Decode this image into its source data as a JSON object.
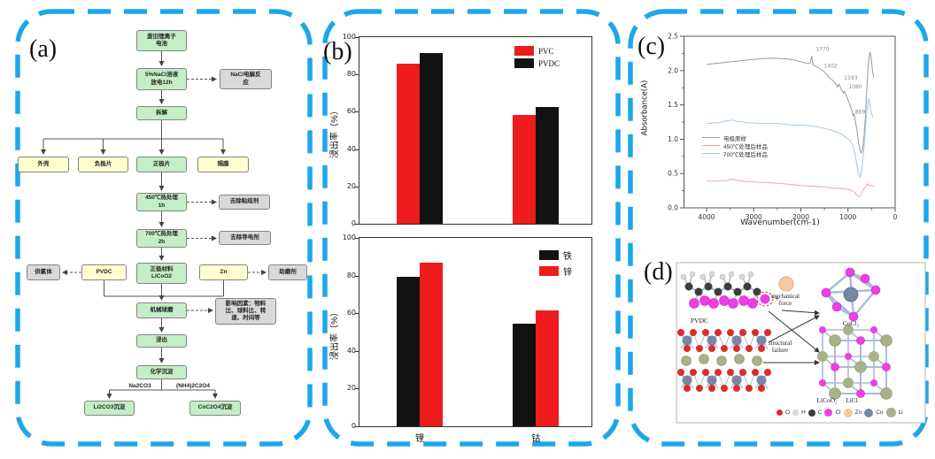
{
  "panels": {
    "a": {
      "label": "(a)",
      "flow": {
        "n1": "废旧锂离子\n电池",
        "n2": "5%NaCl溶液\n放电12h",
        "s1": "NaCl电解反\n应",
        "n3": "拆解",
        "b1": "外壳",
        "b2": "负极片",
        "b3": "正极片",
        "b4": "隔膜",
        "n4": "450℃热处理\n1h",
        "s2": "去除粘结剂",
        "n5": "700℃热处理\n2h",
        "s3": "去除导电剂",
        "s4": "供氯体",
        "p1": "PVDC",
        "n6": "正极材料\nLiCoO2",
        "p2": "Zn",
        "s5": "助磨剂",
        "n7": "机械球磨",
        "s6": "影响因素：物料\n比、球料比、转\n速、时间等",
        "n8": "浸出",
        "n9": "化学沉淀",
        "lbl1": "Na2CO3",
        "lbl2": "(NH4)2C2O4",
        "e1": "Li2CO3沉淀",
        "e2": "CoC2O4沉淀"
      }
    },
    "b": {
      "label": "(b)"
    },
    "c": {
      "label": "(c)"
    },
    "d": {
      "label": "(d)",
      "molecules": {
        "pvdc": "PVDC",
        "licoo2": "LiCoO₂",
        "cocl2": "CoCl₂",
        "licl": "LiCl"
      },
      "annotations": {
        "mechanical": "mechanical\nforce",
        "structural": "structural\nfailure"
      },
      "legend": [
        {
          "label": "O",
          "color": "#dd2b2b"
        },
        {
          "label": "H",
          "color": "#d9d9d9"
        },
        {
          "label": "C",
          "color": "#3d3d3d"
        },
        {
          "label": "Cl",
          "color": "#ee3fe4"
        },
        {
          "label": "Zn",
          "color": "#f6c9a0"
        },
        {
          "label": "Co",
          "color": "#7687a3"
        },
        {
          "label": "Li",
          "color": "#a8b188"
        }
      ]
    },
    "border_color": "#1ba7ec"
  },
  "chart_data": [
    {
      "type": "bar",
      "title": "",
      "ylabel": "浸出率（%）",
      "categories": [
        "",
        ""
      ],
      "series": [
        {
          "name": "PVC",
          "color": "#ee1c1c",
          "values": [
            86,
            58.5
          ]
        },
        {
          "name": "PVDC",
          "color": "#121212",
          "values": [
            91.5,
            62.5
          ]
        }
      ],
      "ylim": [
        0,
        100
      ],
      "yticks": [
        0,
        20,
        40,
        60,
        80,
        100
      ],
      "legend_position": "top-right",
      "grid": false
    },
    {
      "type": "bar",
      "title": "",
      "ylabel": "浸出率（%）",
      "categories": [
        "锂",
        "钴"
      ],
      "series": [
        {
          "name": "铁",
          "color": "#121212",
          "values": [
            79.5,
            54.5
          ]
        },
        {
          "name": "锌",
          "color": "#ee1c1c",
          "values": [
            87,
            61.5
          ]
        }
      ],
      "ylim": [
        0,
        100
      ],
      "yticks": [
        0,
        20,
        40,
        60,
        80,
        100
      ],
      "legend_position": "top-right",
      "grid": false
    },
    {
      "type": "line",
      "title": "",
      "xlabel": "Wavenumber(cm-1)",
      "ylabel": "Absorbance(A)",
      "xlim": [
        4480,
        0
      ],
      "x_reversed": true,
      "ylim": [
        0,
        2.5
      ],
      "xticks": [
        4000,
        3000,
        2000,
        1000,
        0
      ],
      "yticks": [
        0,
        0.5,
        1,
        1.5,
        2,
        2.5
      ],
      "legend_position": "center-left",
      "annotations": [
        {
          "text": "1770",
          "x": 1540,
          "y": 2.29
        },
        {
          "text": "1402",
          "x": 1371,
          "y": 2.04
        },
        {
          "text": "1193",
          "x": 939,
          "y": 1.87
        },
        {
          "text": "1080",
          "x": 845,
          "y": 1.74
        },
        {
          "text": "869",
          "x": 742,
          "y": 1.37
        }
      ],
      "series": [
        {
          "name": "电极原样",
          "color": "#999999",
          "points": [
            [
              4000,
              2.09
            ],
            [
              3600,
              2.12
            ],
            [
              3200,
              2.15
            ],
            [
              2900,
              2.17
            ],
            [
              2600,
              2.18
            ],
            [
              2300,
              2.17
            ],
            [
              2100,
              2.15
            ],
            [
              1950,
              2.12
            ],
            [
              1850,
              2.1
            ],
            [
              1800,
              2.11
            ],
            [
              1770,
              2.21
            ],
            [
              1745,
              2.09
            ],
            [
              1700,
              2.07
            ],
            [
              1600,
              2.03
            ],
            [
              1500,
              1.98
            ],
            [
              1440,
              1.94
            ],
            [
              1402,
              1.9
            ],
            [
              1350,
              1.87
            ],
            [
              1300,
              1.84
            ],
            [
              1255,
              1.8
            ],
            [
              1225,
              1.76
            ],
            [
              1193,
              1.8
            ],
            [
              1160,
              1.75
            ],
            [
              1120,
              1.7
            ],
            [
              1095,
              1.67
            ],
            [
              1080,
              1.7
            ],
            [
              1040,
              1.64
            ],
            [
              1000,
              1.57
            ],
            [
              960,
              1.5
            ],
            [
              920,
              1.42
            ],
            [
              890,
              1.34
            ],
            [
              869,
              1.37
            ],
            [
              845,
              1.27
            ],
            [
              810,
              1.13
            ],
            [
              775,
              0.95
            ],
            [
              745,
              0.84
            ],
            [
              720,
              0.8
            ],
            [
              700,
              0.82
            ],
            [
              680,
              0.9
            ],
            [
              655,
              1.08
            ],
            [
              630,
              1.35
            ],
            [
              605,
              1.68
            ],
            [
              580,
              1.98
            ],
            [
              560,
              2.15
            ],
            [
              545,
              2.24
            ],
            [
              530,
              2.26
            ],
            [
              515,
              2.22
            ],
            [
              500,
              2.12
            ],
            [
              485,
              2.02
            ],
            [
              470,
              1.95
            ],
            [
              455,
              1.9
            ]
          ]
        },
        {
          "name": "450℃处理后样品",
          "color": "#f4a49e",
          "points": [
            [
              4000,
              0.39
            ],
            [
              3750,
              0.39
            ],
            [
              3550,
              0.4
            ],
            [
              3460,
              0.42
            ],
            [
              3380,
              0.4
            ],
            [
              3100,
              0.38
            ],
            [
              2800,
              0.37
            ],
            [
              2500,
              0.36
            ],
            [
              2200,
              0.34
            ],
            [
              1900,
              0.32
            ],
            [
              1600,
              0.31
            ],
            [
              1350,
              0.29
            ],
            [
              1150,
              0.28
            ],
            [
              1000,
              0.27
            ],
            [
              920,
              0.25
            ],
            [
              860,
              0.23
            ],
            [
              820,
              0.19
            ],
            [
              790,
              0.17
            ],
            [
              765,
              0.16
            ],
            [
              740,
              0.17
            ],
            [
              715,
              0.21
            ],
            [
              690,
              0.25
            ],
            [
              660,
              0.28
            ],
            [
              630,
              0.3
            ],
            [
              605,
              0.33
            ],
            [
              585,
              0.35
            ],
            [
              565,
              0.34
            ],
            [
              540,
              0.32
            ],
            [
              515,
              0.33
            ],
            [
              490,
              0.33
            ],
            [
              465,
              0.31
            ]
          ]
        },
        {
          "name": "700℃处理后样品",
          "color": "#a6c6e8",
          "points": [
            [
              4000,
              1.23
            ],
            [
              3750,
              1.24
            ],
            [
              3550,
              1.27
            ],
            [
              3460,
              1.28
            ],
            [
              3350,
              1.26
            ],
            [
              3100,
              1.24
            ],
            [
              2800,
              1.23
            ],
            [
              2500,
              1.23
            ],
            [
              2200,
              1.21
            ],
            [
              1900,
              1.2
            ],
            [
              1650,
              1.18
            ],
            [
              1450,
              1.15
            ],
            [
              1250,
              1.11
            ],
            [
              1100,
              1.06
            ],
            [
              1020,
              1.01
            ],
            [
              960,
              0.98
            ],
            [
              900,
              0.91
            ],
            [
              855,
              0.8
            ],
            [
              815,
              0.64
            ],
            [
              785,
              0.52
            ],
            [
              760,
              0.46
            ],
            [
              745,
              0.45
            ],
            [
              725,
              0.49
            ],
            [
              700,
              0.6
            ],
            [
              675,
              0.77
            ],
            [
              650,
              0.98
            ],
            [
              625,
              1.2
            ],
            [
              600,
              1.4
            ],
            [
              580,
              1.52
            ],
            [
              560,
              1.59
            ],
            [
              545,
              1.54
            ],
            [
              525,
              1.44
            ],
            [
              505,
              1.38
            ],
            [
              485,
              1.35
            ],
            [
              465,
              1.32
            ]
          ]
        }
      ]
    }
  ]
}
